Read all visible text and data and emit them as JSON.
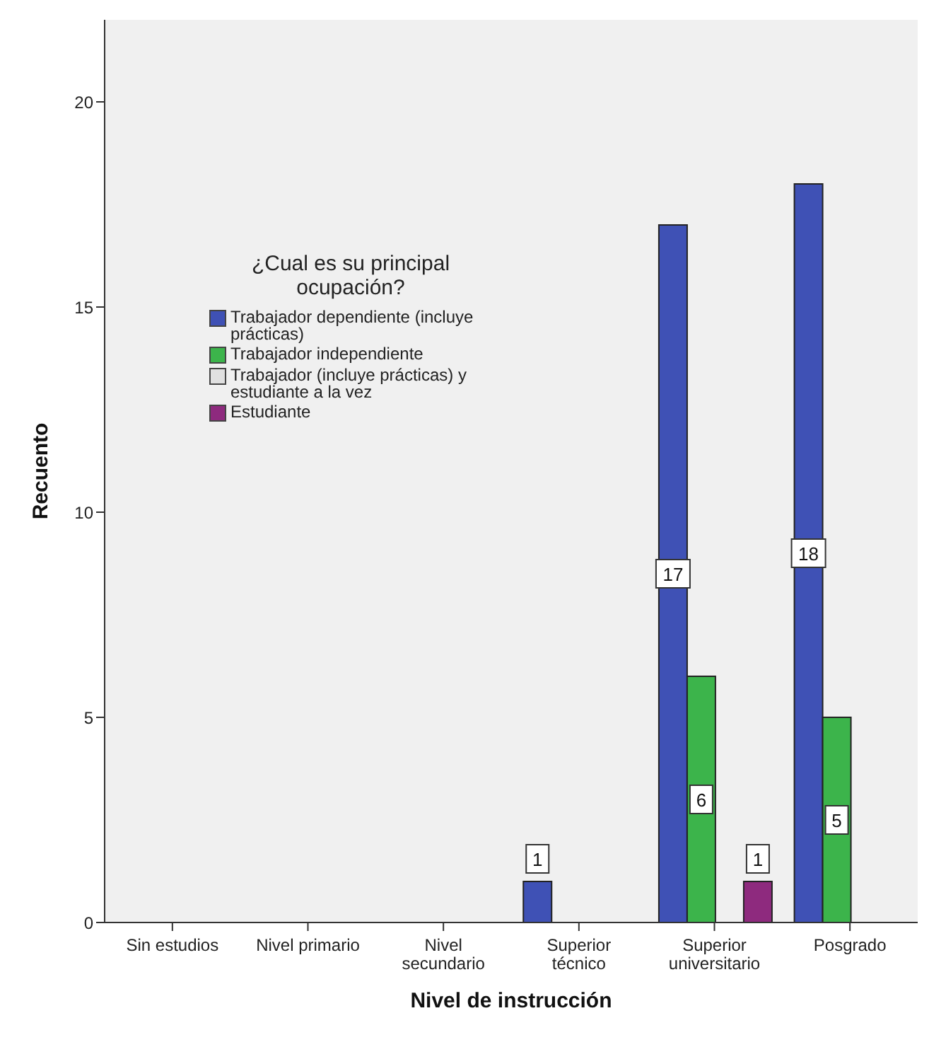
{
  "chart_data": {
    "type": "bar",
    "xlabel": "Nivel de instrucción",
    "ylabel": "Recuento",
    "legend_title": "¿Cual es su principal ocupación?",
    "categories": [
      "Sin estudios",
      "Nivel primario",
      "Nivel secundario",
      "Superior técnico",
      "Superior universitario",
      "Posgrado"
    ],
    "series": [
      {
        "name": "Trabajador dependiente (incluye prácticas)",
        "color": "#3f51b5",
        "values": [
          null,
          null,
          null,
          1,
          17,
          18
        ]
      },
      {
        "name": "Trabajador independiente",
        "color": "#3cb44b",
        "values": [
          null,
          null,
          null,
          null,
          6,
          5
        ]
      },
      {
        "name": "Trabajador (incluye prácticas) y estudiante a la vez",
        "color": "#e0e0e0",
        "values": [
          null,
          null,
          null,
          null,
          null,
          null
        ]
      },
      {
        "name": "Estudiante",
        "color": "#8e2a7e",
        "values": [
          null,
          null,
          null,
          null,
          1,
          null
        ]
      }
    ],
    "ylim": [
      0,
      22
    ],
    "yticks": [
      0,
      5,
      10,
      15,
      20
    ],
    "legend": "top left",
    "data_labels": true
  }
}
